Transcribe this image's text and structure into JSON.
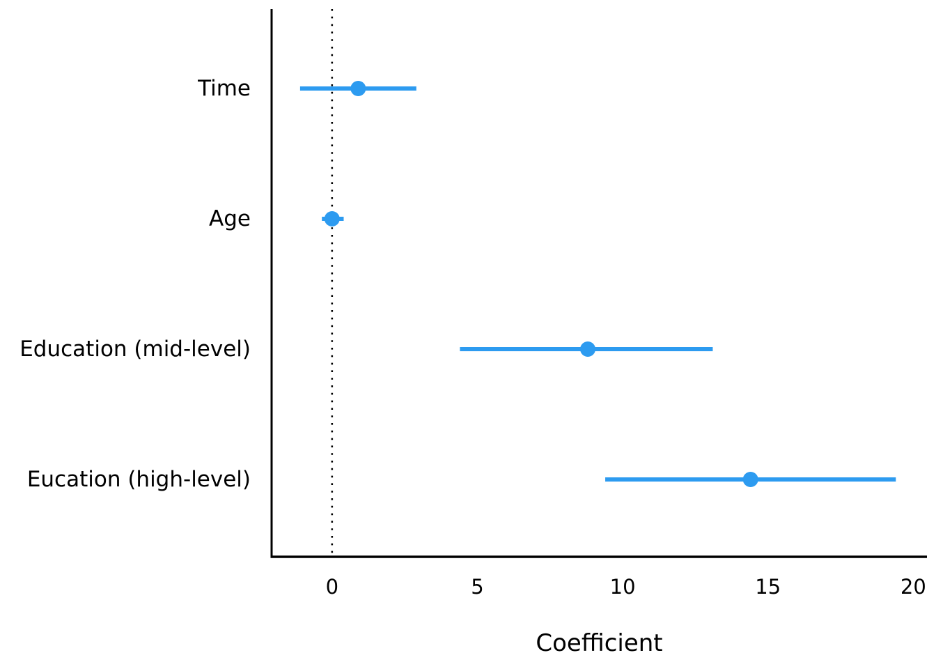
{
  "chart_data": {
    "type": "scatter",
    "subtype": "coefficient-dot-whisker",
    "orientation": "horizontal",
    "title": "",
    "xlabel": "Coefficient",
    "ylabel": "",
    "categories": [
      "Time",
      "Age",
      "Education (mid-level)",
      "Eucation (high-level)"
    ],
    "points": [
      {
        "label": "Time",
        "value": 0.9,
        "ci_low": -1.1,
        "ci_high": 2.9
      },
      {
        "label": "Age",
        "value": 0.0,
        "ci_low": -0.35,
        "ci_high": 0.4
      },
      {
        "label": "Education (mid-level)",
        "value": 8.8,
        "ci_low": 4.4,
        "ci_high": 13.1
      },
      {
        "label": "Eucation (high-level)",
        "value": 14.4,
        "ci_low": 9.4,
        "ci_high": 19.4
      }
    ],
    "x_ticks": [
      0,
      5,
      10,
      15,
      20
    ],
    "xlim": [
      -2.08,
      20.47
    ],
    "reference_line": {
      "x": 0,
      "style": "dotted",
      "color": "#000000"
    },
    "marker_color": "#2D9BF0",
    "axis_color": "#000000",
    "grid": false,
    "legend": null
  }
}
